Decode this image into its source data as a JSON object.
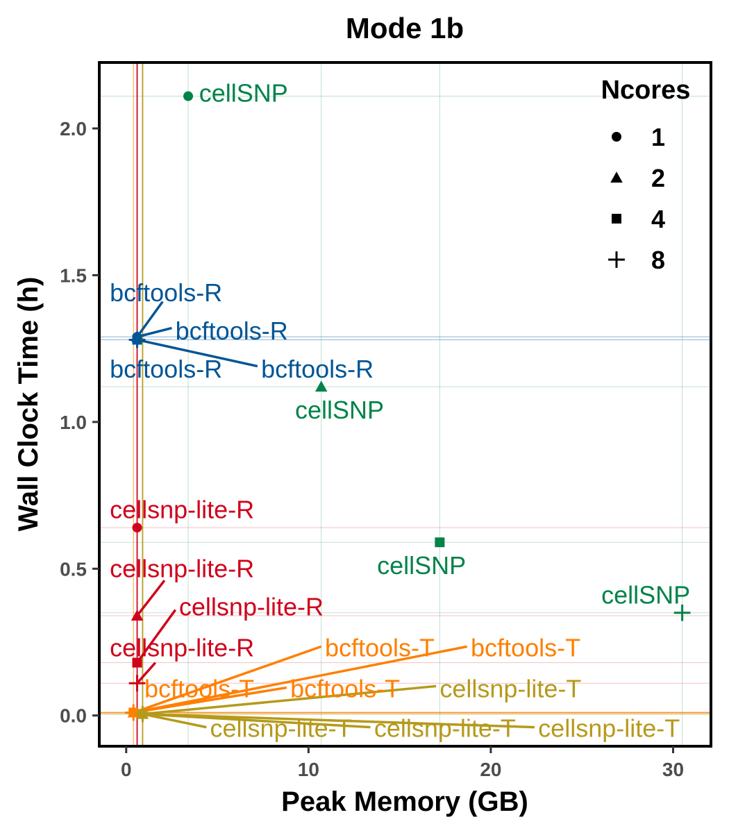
{
  "chart_data": {
    "type": "scatter",
    "title": "Mode 1b",
    "xlabel": "Peak Memory (GB)",
    "ylabel": "Wall Clock Time (h)",
    "xlim": [
      -1.4,
      32
    ],
    "ylim": [
      -0.1,
      2.22
    ],
    "x_ticks": [
      0,
      10,
      20,
      30
    ],
    "x_tick_labels": [
      "0",
      "10",
      "20",
      "30"
    ],
    "y_ticks": [
      0.0,
      0.5,
      1.0,
      1.5,
      2.0
    ],
    "y_tick_labels": [
      "0.0",
      "0.5",
      "1.0",
      "1.5",
      "2.0"
    ],
    "grid": true,
    "legend": {
      "title": "Ncores",
      "position": "top-right",
      "entries": [
        {
          "shape": "circle",
          "label": "1"
        },
        {
          "shape": "triangle",
          "label": "2"
        },
        {
          "shape": "square",
          "label": "4"
        },
        {
          "shape": "plus",
          "label": "8"
        }
      ]
    },
    "colors": {
      "cellSNP": "#008349",
      "bcftools-R": "#005596",
      "cellsnp-lite-R": "#d0021b",
      "bcftools-T": "#ff7f00",
      "cellsnp-lite-T": "#b59a1b"
    },
    "points": [
      {
        "tool": "cellSNP",
        "ncores": 1,
        "x": 3.4,
        "y": 2.11,
        "label": "cellSNP",
        "lx": 4.0,
        "ly": 2.12,
        "anchor": "start",
        "leader": false
      },
      {
        "tool": "cellSNP",
        "ncores": 2,
        "x": 10.7,
        "y": 1.12,
        "label": "cellSNP",
        "lx": 11.7,
        "ly": 1.04,
        "anchor": "middle",
        "leader": false
      },
      {
        "tool": "cellSNP",
        "ncores": 4,
        "x": 17.2,
        "y": 0.59,
        "label": "cellSNP",
        "lx": 16.2,
        "ly": 0.51,
        "anchor": "middle",
        "leader": false
      },
      {
        "tool": "cellSNP",
        "ncores": 8,
        "x": 30.5,
        "y": 0.35,
        "label": "cellSNP",
        "lx": 28.5,
        "ly": 0.41,
        "anchor": "middle",
        "leader": false
      },
      {
        "tool": "bcftools-R",
        "ncores": 1,
        "x": 0.6,
        "y": 1.29,
        "label": "bcftools-R",
        "lx": -0.9,
        "ly": 1.44,
        "anchor": "start",
        "leader": true,
        "ex": 2.0,
        "ey": 1.41
      },
      {
        "tool": "bcftools-R",
        "ncores": 2,
        "x": 0.6,
        "y": 1.29,
        "label": "bcftools-R",
        "lx": 2.7,
        "ly": 1.31,
        "anchor": "start",
        "leader": true,
        "ex": 2.5,
        "ey": 1.32
      },
      {
        "tool": "bcftools-R",
        "ncores": 4,
        "x": 0.6,
        "y": 1.28,
        "label": "bcftools-R",
        "lx": -0.9,
        "ly": 1.18,
        "anchor": "start",
        "leader": false
      },
      {
        "tool": "bcftools-R",
        "ncores": 8,
        "x": 0.6,
        "y": 1.28,
        "label": "bcftools-R",
        "lx": 7.4,
        "ly": 1.18,
        "anchor": "start",
        "leader": true,
        "ex": 7.2,
        "ey": 1.19
      },
      {
        "tool": "cellsnp-lite-R",
        "ncores": 1,
        "x": 0.6,
        "y": 0.64,
        "label": "cellsnp-lite-R",
        "lx": -0.9,
        "ly": 0.7,
        "anchor": "start",
        "leader": false
      },
      {
        "tool": "cellsnp-lite-R",
        "ncores": 2,
        "x": 0.6,
        "y": 0.34,
        "label": "cellsnp-lite-R",
        "lx": -0.9,
        "ly": 0.5,
        "anchor": "start",
        "leader": true,
        "ex": 2.1,
        "ey": 0.46
      },
      {
        "tool": "cellsnp-lite-R",
        "ncores": 4,
        "x": 0.6,
        "y": 0.18,
        "label": "cellsnp-lite-R",
        "lx": 2.9,
        "ly": 0.37,
        "anchor": "start",
        "leader": true,
        "ex": 2.7,
        "ey": 0.36
      },
      {
        "tool": "cellsnp-lite-R",
        "ncores": 8,
        "x": 0.6,
        "y": 0.11,
        "label": "cellsnp-lite-R",
        "lx": -0.9,
        "ly": 0.23,
        "anchor": "start",
        "leader": true,
        "ex": 1.6,
        "ey": 0.18
      },
      {
        "tool": "bcftools-T",
        "ncores": 1,
        "x": 0.4,
        "y": 0.01,
        "label": "bcftools-T",
        "lx": 10.9,
        "ly": 0.23,
        "anchor": "start",
        "leader": true,
        "ex": 10.7,
        "ey": 0.235
      },
      {
        "tool": "bcftools-T",
        "ncores": 2,
        "x": 0.4,
        "y": 0.01,
        "label": "bcftools-T",
        "lx": 18.9,
        "ly": 0.23,
        "anchor": "start",
        "leader": true,
        "ex": 18.7,
        "ey": 0.235
      },
      {
        "tool": "bcftools-T",
        "ncores": 4,
        "x": 0.4,
        "y": 0.01,
        "label": "bcftools-T",
        "lx": 1.0,
        "ly": 0.09,
        "anchor": "start",
        "leader": false
      },
      {
        "tool": "bcftools-T",
        "ncores": 8,
        "x": 0.4,
        "y": 0.01,
        "label": "bcftools-T",
        "lx": 9.0,
        "ly": 0.09,
        "anchor": "start",
        "leader": true,
        "ex": 8.8,
        "ey": 0.095
      },
      {
        "tool": "cellsnp-lite-T",
        "ncores": 1,
        "x": 0.9,
        "y": 0.005,
        "label": "cellsnp-lite-T",
        "lx": 17.2,
        "ly": 0.09,
        "anchor": "start",
        "leader": true,
        "ex": 17.0,
        "ey": 0.1
      },
      {
        "tool": "cellsnp-lite-T",
        "ncores": 2,
        "x": 0.9,
        "y": 0.005,
        "label": "cellsnp-lite-T",
        "lx": 4.6,
        "ly": -0.045,
        "anchor": "start",
        "leader": true,
        "ex": 4.4,
        "ey": -0.04
      },
      {
        "tool": "cellsnp-lite-T",
        "ncores": 4,
        "x": 0.9,
        "y": 0.005,
        "label": "cellsnp-lite-T",
        "lx": 13.6,
        "ly": -0.045,
        "anchor": "start",
        "leader": true,
        "ex": 13.4,
        "ey": -0.04
      },
      {
        "tool": "cellsnp-lite-T",
        "ncores": 8,
        "x": 0.9,
        "y": 0.005,
        "label": "cellsnp-lite-T",
        "lx": 22.6,
        "ly": -0.045,
        "anchor": "start",
        "leader": true,
        "ex": 22.4,
        "ey": -0.04
      }
    ]
  }
}
